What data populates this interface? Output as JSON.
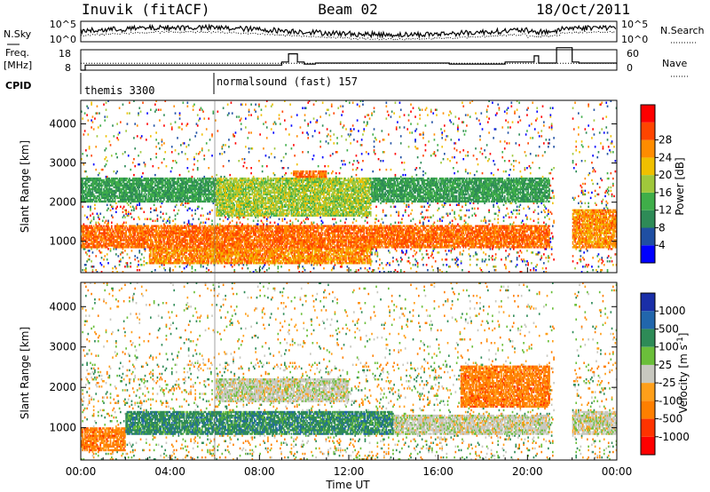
{
  "header": {
    "station": "Inuvik (fitACF)",
    "beam": "Beam 02",
    "date": "18/Oct/2011"
  },
  "noise_panel": {
    "left_label": "N.Sky",
    "right_label": "N.Search",
    "left_ticks": [
      "10^5",
      "10^0"
    ],
    "right_ticks": [
      "10^5",
      "10^0"
    ]
  },
  "freq_panel": {
    "left_label_1": "Freq.",
    "left_label_2": "[MHz]",
    "left_ticks": [
      "18",
      "8"
    ],
    "right_label": "Nave",
    "right_ticks": [
      "60",
      "0"
    ]
  },
  "cpid": {
    "label": "CPID",
    "programs": [
      {
        "name": "themis 3300",
        "start_hour": 0.0
      },
      {
        "name": "normalsound (fast) 157",
        "start_hour": 6.0
      }
    ]
  },
  "time_axis": {
    "label": "Time UT",
    "ticks": [
      "00:00",
      "04:00",
      "08:00",
      "12:00",
      "16:00",
      "20:00",
      "00:00"
    ],
    "start_hour": 0,
    "end_hour": 24
  },
  "colors": {
    "power": [
      "#0000ff",
      "#1f4fa3",
      "#2e8b57",
      "#3fae49",
      "#a0c83c",
      "#f0c000",
      "#ff8c00",
      "#ff4500",
      "#ff0000"
    ],
    "velocity": [
      "#1a2fa8",
      "#2166ac",
      "#2e8b57",
      "#6bbf3a",
      "#c8c8c0",
      "#ff9f1a",
      "#ff7f00",
      "#ff3300",
      "#ff0000"
    ],
    "ground_scatter": "#c8c8c0"
  },
  "chart_data": [
    {
      "type": "heatmap",
      "panel": "power",
      "ylabel": "Slant Range [km]",
      "xlabel": "Time UT",
      "xlim": [
        0,
        24
      ],
      "ylim": [
        200,
        4600
      ],
      "yticks": [
        1000,
        2000,
        3000,
        4000
      ],
      "colorbar": {
        "label": "Power [dB]",
        "range": [
          0,
          32
        ],
        "ticks": [
          4,
          8,
          12,
          16,
          20,
          24,
          28
        ]
      },
      "features": [
        {
          "from_hour": 0.0,
          "to_hour": 21.0,
          "range_km": [
            800,
            1400
          ],
          "value_db": 26
        },
        {
          "from_hour": 3.0,
          "to_hour": 13.0,
          "range_km": [
            400,
            800
          ],
          "value_db": 24
        },
        {
          "from_hour": 6.0,
          "to_hour": 13.0,
          "range_km": [
            1600,
            2600
          ],
          "value_db": 16
        },
        {
          "from_hour": 0.0,
          "to_hour": 21.0,
          "range_km": [
            2000,
            2600
          ],
          "value_db": 10
        },
        {
          "from_hour": 9.5,
          "to_hour": 11.0,
          "range_km": [
            2200,
            2800
          ],
          "value_db": 26
        },
        {
          "from_hour": 22.0,
          "to_hour": 24.0,
          "range_km": [
            800,
            1800
          ],
          "value_db": 24
        }
      ],
      "data_gap_hours": [
        [
          21.2,
          22.0
        ]
      ]
    },
    {
      "type": "heatmap",
      "panel": "velocity",
      "ylabel": "Slant Range [km]",
      "xlabel": "Time UT",
      "xlim": [
        0,
        24
      ],
      "ylim": [
        200,
        4600
      ],
      "yticks": [
        1000,
        2000,
        3000,
        4000
      ],
      "colorbar": {
        "label": "Velocity [m s^-1]",
        "ticks": [
          "1000",
          "500",
          "100",
          "25",
          "-25",
          "-100",
          "-500",
          "-1000"
        ]
      },
      "features": [
        {
          "from_hour": 0.0,
          "to_hour": 2.0,
          "range_km": [
            400,
            1000
          ],
          "value_ms": -300
        },
        {
          "from_hour": 2.0,
          "to_hour": 14.0,
          "range_km": [
            800,
            1400
          ],
          "value_ms": 100
        },
        {
          "from_hour": 12.0,
          "to_hour": 21.0,
          "range_km": [
            800,
            1300
          ],
          "value_ms": 0
        },
        {
          "from_hour": 6.0,
          "to_hour": 12.0,
          "range_km": [
            1600,
            2200
          ],
          "value_ms": 0
        },
        {
          "from_hour": 22.0,
          "to_hour": 24.0,
          "range_km": [
            800,
            1400
          ],
          "value_ms": 0
        },
        {
          "from_hour": 17.0,
          "to_hour": 21.0,
          "range_km": [
            1500,
            2500
          ],
          "value_ms": -200
        }
      ],
      "data_gap_hours": [
        [
          21.2,
          22.0
        ]
      ]
    },
    {
      "type": "line",
      "panel": "noise",
      "series": [
        {
          "name": "N.Sky",
          "style": "solid"
        },
        {
          "name": "N.Search",
          "style": "dotted"
        }
      ]
    },
    {
      "type": "line",
      "panel": "frequency",
      "x": [
        0.0,
        0.2,
        6.0,
        6.5,
        9.0,
        9.3,
        9.7,
        10.0,
        10.5,
        13.0,
        16.5,
        19.0,
        20.0,
        20.3,
        20.5,
        21.0,
        21.3,
        22.0,
        22.3,
        24.0
      ],
      "series": [
        {
          "name": "Freq.",
          "style": "solid",
          "values": [
            8,
            10.5,
            10.5,
            10.5,
            12,
            16,
            12,
            11,
            11.5,
            11.5,
            11,
            12,
            12,
            15,
            11.5,
            11.5,
            19,
            12,
            11.5,
            11.5
          ]
        },
        {
          "name": "Nave",
          "style": "dotted",
          "values": [
            20,
            20,
            20,
            20,
            20,
            20,
            20,
            20,
            20,
            20,
            20,
            20,
            20,
            20,
            20,
            20,
            20,
            20,
            20,
            20
          ]
        }
      ]
    }
  ]
}
